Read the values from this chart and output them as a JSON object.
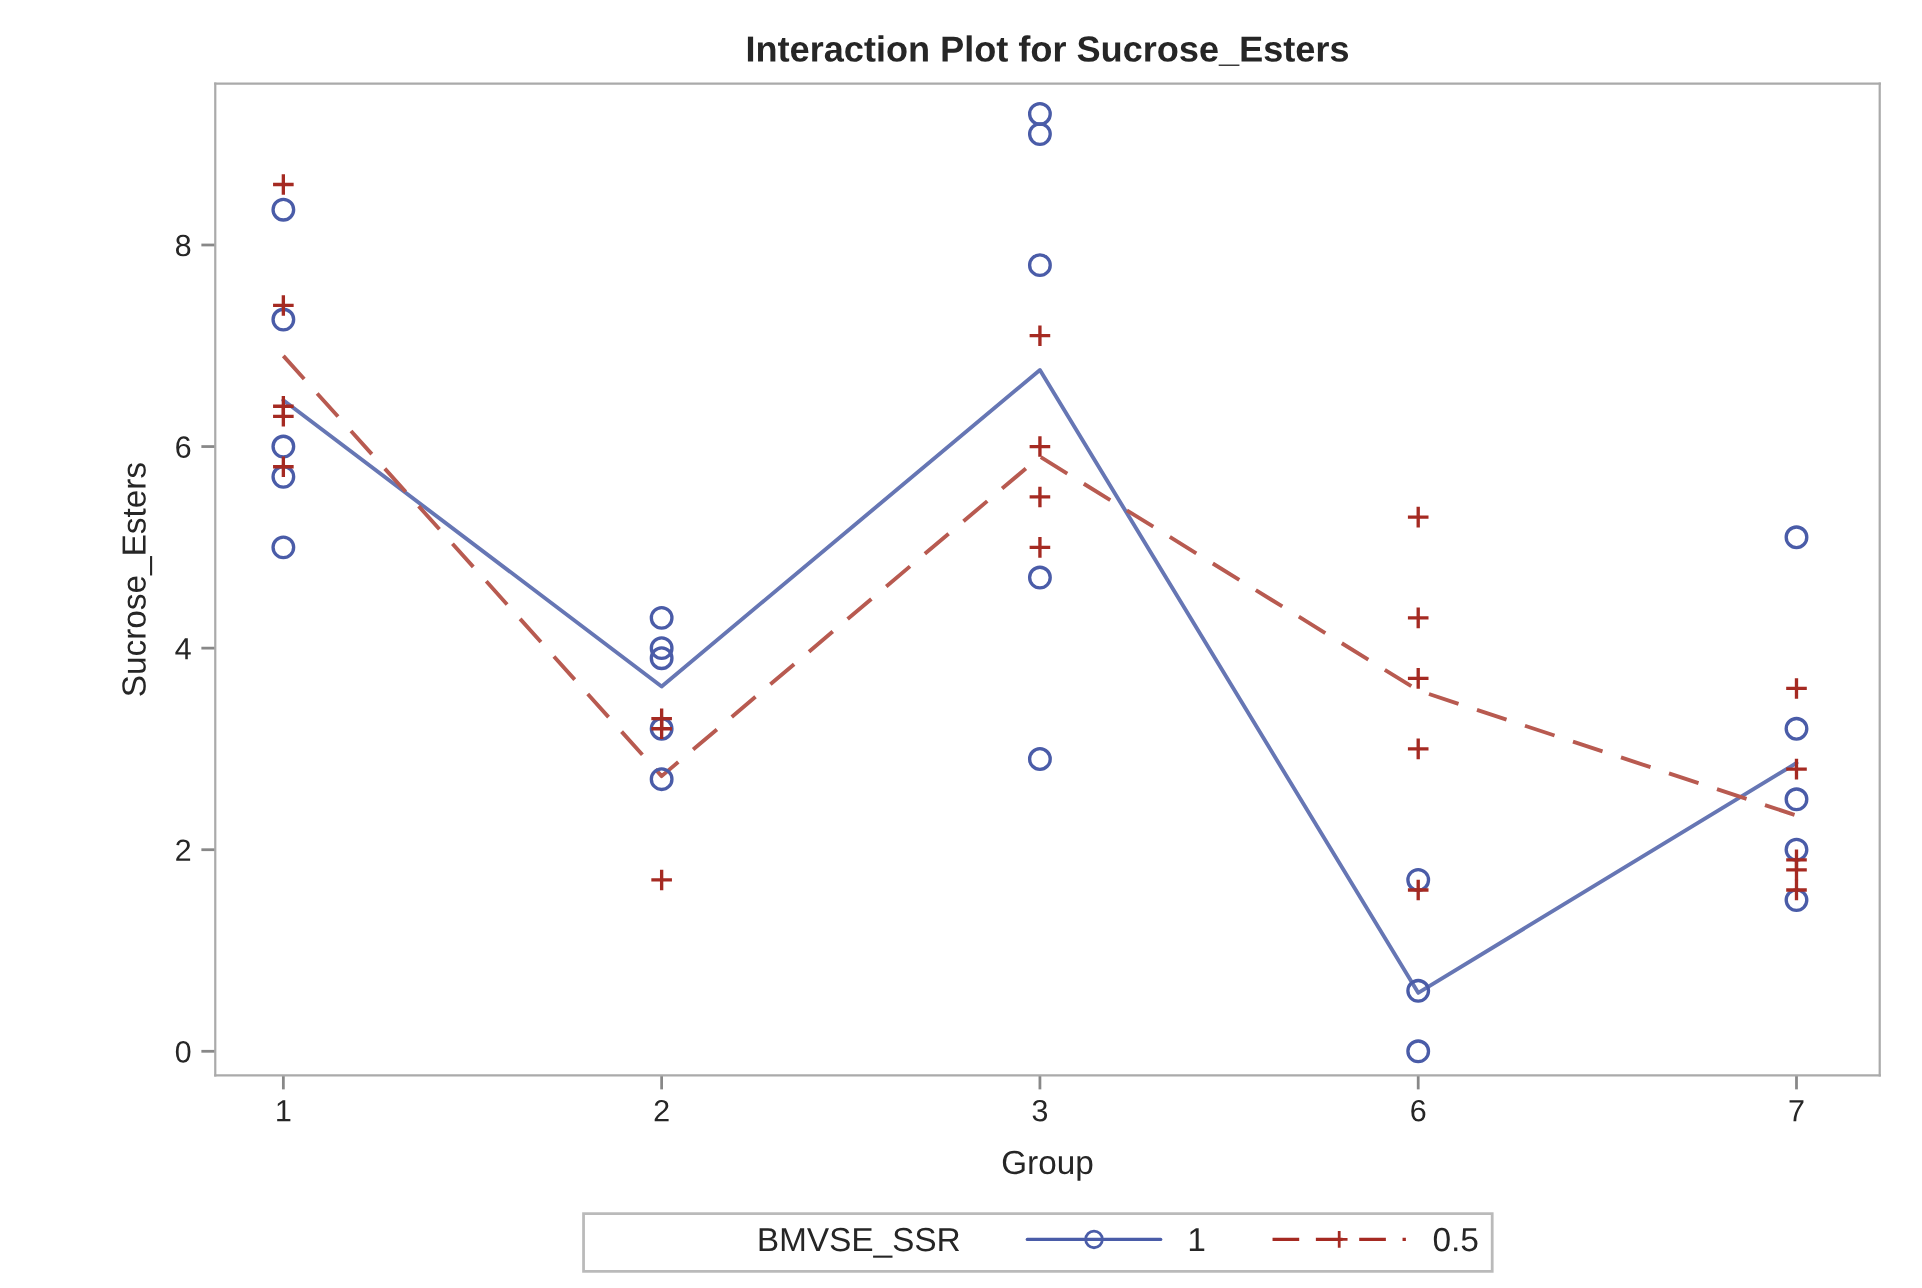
{
  "chart_data": {
    "type": "scatter",
    "title": "Interaction Plot for Sucrose_Esters",
    "xlabel": "Group",
    "ylabel": "Sucrose_Esters",
    "legend_title": "BMVSE_SSR",
    "categories": [
      "1",
      "2",
      "3",
      "6",
      "7"
    ],
    "ylim": [
      -0.24,
      9.6
    ],
    "yticks": [
      0,
      2,
      4,
      6,
      8
    ],
    "grid": false,
    "legend": "bottom",
    "series": [
      {
        "name": "1",
        "marker": "circle",
        "color": "#4a5ca8",
        "x": [
          "1",
          "1",
          "1",
          "1",
          "1",
          "2",
          "2",
          "2",
          "2",
          "2",
          "3",
          "3",
          "3",
          "3",
          "3",
          "6",
          "6",
          "6",
          "7",
          "7",
          "7",
          "7",
          "7"
        ],
        "values": [
          8.35,
          7.26,
          6.0,
          5.7,
          5.0,
          4.3,
          4.0,
          3.9,
          3.2,
          2.7,
          9.3,
          9.1,
          7.8,
          4.7,
          2.9,
          1.7,
          0.6,
          0.0,
          5.1,
          3.2,
          2.5,
          2.0,
          1.5
        ]
      },
      {
        "type": "line",
        "line_style": "solid",
        "color": "#6676b4",
        "values": [
          6.46,
          3.62,
          6.76,
          0.58,
          2.86
        ]
      },
      {
        "name": "0.5",
        "marker": "cross",
        "color": "#a52a22",
        "x": [
          "1",
          "1",
          "1",
          "1",
          "1",
          "2",
          "2",
          "2",
          "3",
          "3",
          "3",
          "3",
          "6",
          "6",
          "6",
          "6",
          "6",
          "7",
          "7",
          "7",
          "7",
          "7"
        ],
        "values": [
          8.6,
          7.4,
          6.4,
          6.3,
          5.8,
          3.3,
          3.2,
          1.7,
          7.1,
          6.0,
          5.5,
          5.0,
          5.3,
          4.3,
          3.7,
          3.0,
          1.6,
          3.6,
          2.8,
          1.9,
          1.8,
          1.6
        ]
      },
      {
        "type": "line",
        "line_style": "dashed",
        "color": "#b85a50",
        "values": [
          6.9,
          2.73,
          5.9,
          3.58,
          2.34
        ]
      }
    ]
  }
}
